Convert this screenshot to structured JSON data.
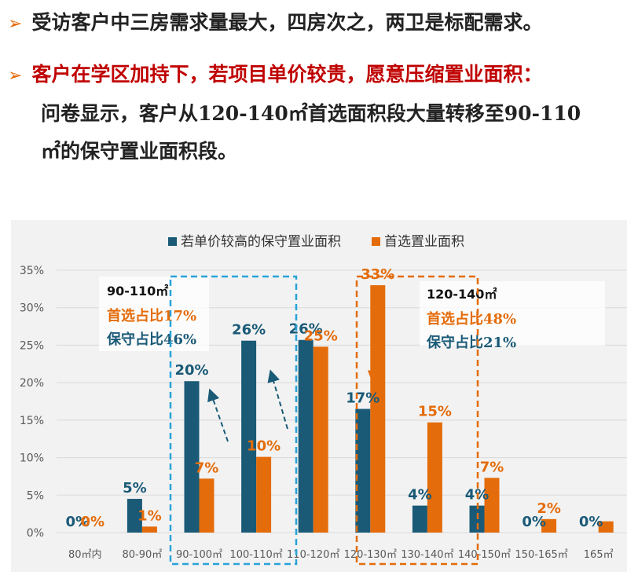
{
  "bullets": {
    "marker": "➢",
    "line1": "受访客户中三房需求量最大，四房次之，两卫是标配需求。",
    "line2": "客户在学区加持下，若项目单价较贵，愿意压缩置业面积：",
    "line3_a": "问卷显示，客户从",
    "line3_b": "120-140㎡",
    "line3_c": "首选面积段大量转移至",
    "line3_d": "90-110",
    "line4_a": "㎡",
    "line4_b": "的保守置业面积段。"
  },
  "colors": {
    "conservative": "#1a5a77",
    "preferred": "#e46c0a",
    "blue_box": "#29a3d9",
    "orange_box": "#e46c0a",
    "text_dark": "#222222",
    "red": "#c00000"
  },
  "chart_data": {
    "type": "bar",
    "title": "",
    "xlabel": "",
    "ylabel": "",
    "ylim": [
      0,
      35
    ],
    "yticks": [
      "0%",
      "5%",
      "10%",
      "15%",
      "20%",
      "25%",
      "30%",
      "35%"
    ],
    "legend_position": "top",
    "categories": [
      "80㎡内",
      "80-90㎡",
      "90-100㎡",
      "100-110㎡",
      "110-120㎡",
      "120-130㎡",
      "130-140㎡",
      "140-150㎡",
      "150-165㎡",
      "165㎡"
    ],
    "series": [
      {
        "name": "若单价较高的保守置业面积",
        "values": [
          0,
          4.5,
          20.2,
          25.6,
          25.7,
          16.5,
          3.6,
          3.6,
          0,
          0
        ],
        "labels": [
          "0%",
          "5%",
          "20%",
          "26%",
          "26%",
          "17%",
          "4%",
          "4%",
          "0%",
          "0%"
        ]
      },
      {
        "name": "首选置业面积",
        "values": [
          0,
          0.8,
          7.2,
          10.1,
          24.8,
          33.0,
          14.7,
          7.3,
          1.8,
          1.5
        ],
        "labels": [
          "0%",
          "1%",
          "7%",
          "10%",
          "25%",
          "33%",
          "15%",
          "7%",
          "2%",
          ""
        ]
      }
    ],
    "annotations": [
      {
        "id": "left",
        "line1": "90-110㎡",
        "line2_a": "首选占比",
        "line2_b": "17%",
        "line3_a": "保守占比",
        "line3_b": "46%"
      },
      {
        "id": "right",
        "line1": "120-140㎡",
        "line2_a": "首选占比",
        "line2_b": "48%",
        "line3_a": "保守占比",
        "line3_b": "21%"
      }
    ]
  }
}
